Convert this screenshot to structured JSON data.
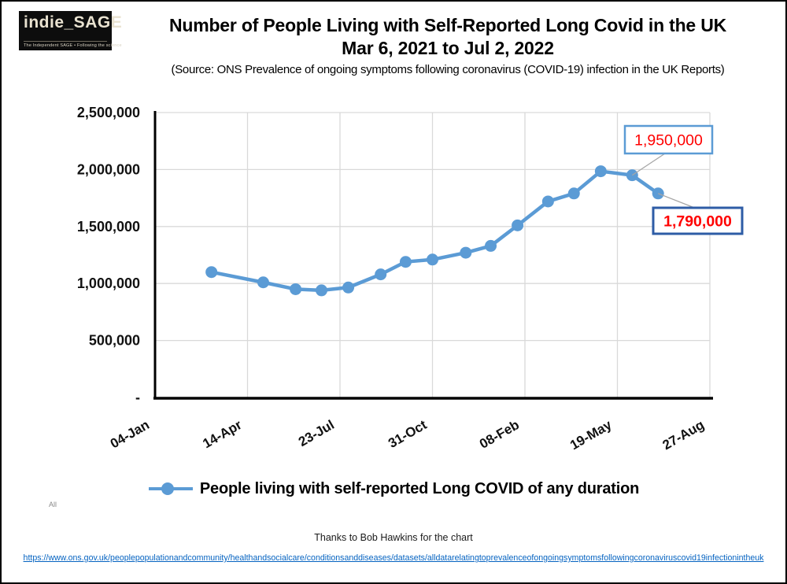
{
  "page": {
    "logo": {
      "title": "indie_SAGE",
      "tagline": "The Independent SAGE • Following the science"
    },
    "header": {
      "title_line1": "Number of People Living with Self-Reported Long Covid in the UK",
      "title_line2": "Mar 6, 2021 to Jul 2, 2022",
      "source": "(Source: ONS Prevalence of ongoing symptoms following coronavirus (COVID-19) infection in the UK Reports)"
    },
    "misc": {
      "slicer_label": "All"
    },
    "footer": {
      "thanks": "Thanks to Bob Hawkins for the chart",
      "link": "https://www.ons.gov.uk/peoplepopulationandcommunity/healthandsocialcare/conditionsanddiseases/datasets/alldatarelatingtoprevalenceofongoingsymptomsfollowingcoronaviruscovid19infectionintheuk"
    }
  },
  "chart_data": {
    "type": "line",
    "title": "Number of People Living with Self-Reported Long Covid in the UK, Mar 6, 2021 to Jul 2, 2022",
    "grid": true,
    "legend_position": "bottom",
    "colors": {
      "series": "#5B9BD5",
      "gridline": "#D9D9D9",
      "axis": "#000000",
      "leader_line": "#A6A6A6",
      "annotation_text": "#FF0000",
      "annotation_border_light": "#5B9BD5",
      "annotation_border_dark": "#2E5CA6"
    },
    "x_axis": {
      "start_date": "2021-01-04",
      "end_date": "2022-08-27",
      "ticks": [
        {
          "date": "2021-01-04",
          "label": "04-Jan"
        },
        {
          "date": "2021-04-14",
          "label": "14-Apr"
        },
        {
          "date": "2021-07-23",
          "label": "23-Jul"
        },
        {
          "date": "2021-10-31",
          "label": "31-Oct"
        },
        {
          "date": "2022-02-08",
          "label": "08-Feb"
        },
        {
          "date": "2022-05-19",
          "label": "19-May"
        },
        {
          "date": "2022-08-27",
          "label": "27-Aug"
        }
      ]
    },
    "y_axis": {
      "min": 0,
      "max": 2500000,
      "step": 500000,
      "tick_labels": [
        "-",
        "500,000",
        "1,000,000",
        "1,500,000",
        "2,000,000",
        "2,500,000"
      ]
    },
    "series": [
      {
        "name": "People living with self-reported Long COVID of any duration",
        "points": [
          {
            "date": "2021-03-06",
            "value": 1100000
          },
          {
            "date": "2021-05-01",
            "value": 1010000
          },
          {
            "date": "2021-06-05",
            "value": 950000
          },
          {
            "date": "2021-07-03",
            "value": 940000
          },
          {
            "date": "2021-08-01",
            "value": 965000
          },
          {
            "date": "2021-09-05",
            "value": 1080000
          },
          {
            "date": "2021-10-02",
            "value": 1190000
          },
          {
            "date": "2021-10-31",
            "value": 1210000
          },
          {
            "date": "2021-12-06",
            "value": 1270000
          },
          {
            "date": "2022-01-02",
            "value": 1330000
          },
          {
            "date": "2022-01-31",
            "value": 1510000
          },
          {
            "date": "2022-03-05",
            "value": 1720000
          },
          {
            "date": "2022-04-02",
            "value": 1790000
          },
          {
            "date": "2022-05-01",
            "value": 1985000
          },
          {
            "date": "2022-06-04",
            "value": 1950000
          },
          {
            "date": "2022-07-02",
            "value": 1790000
          }
        ]
      }
    ],
    "annotations": [
      {
        "label": "1,950,000",
        "point_index": 14,
        "box_style": "light"
      },
      {
        "label": "1,790,000",
        "point_index": 15,
        "box_style": "dark"
      }
    ],
    "legend": {
      "label": "People living with self-reported Long COVID of any duration"
    }
  }
}
